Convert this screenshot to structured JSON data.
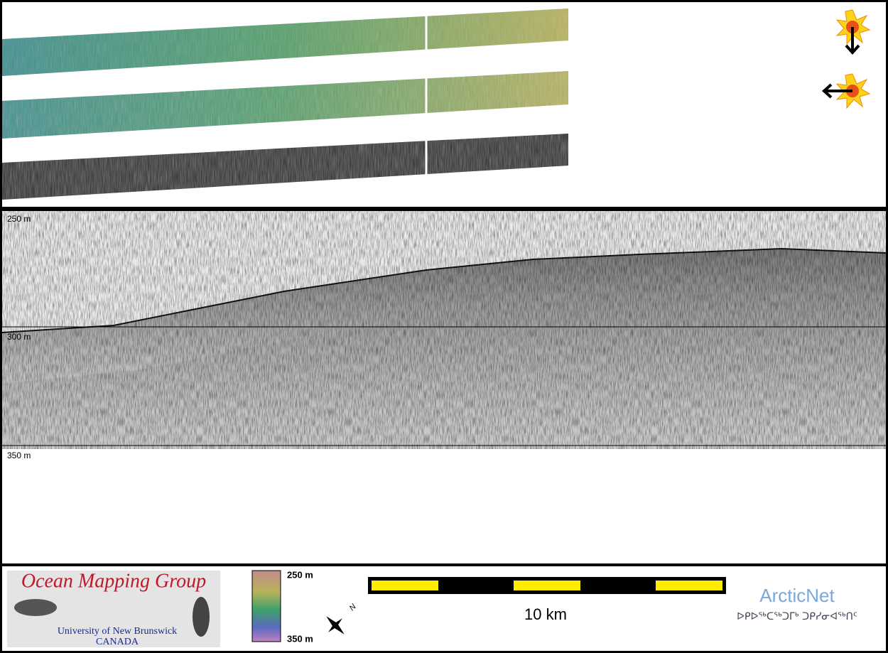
{
  "profile": {
    "depth_labels": [
      "250 m",
      "300 m",
      "350 m"
    ]
  },
  "legend": {
    "logo": {
      "title": "Ocean Mapping Group",
      "university": "University of New Brunswick",
      "country": "CANADA"
    },
    "colorbar": {
      "top": "250 m",
      "bottom": "350 m"
    },
    "north": "N",
    "scale_bar": "10 km",
    "sponsor": {
      "name": "ArcticNet",
      "syllabics": "ᐅᑭᐅᖅᑕᖅᑐᒥᒃ ᑐᑭᓯᓂᐊᖅᑎᑦ"
    }
  }
}
